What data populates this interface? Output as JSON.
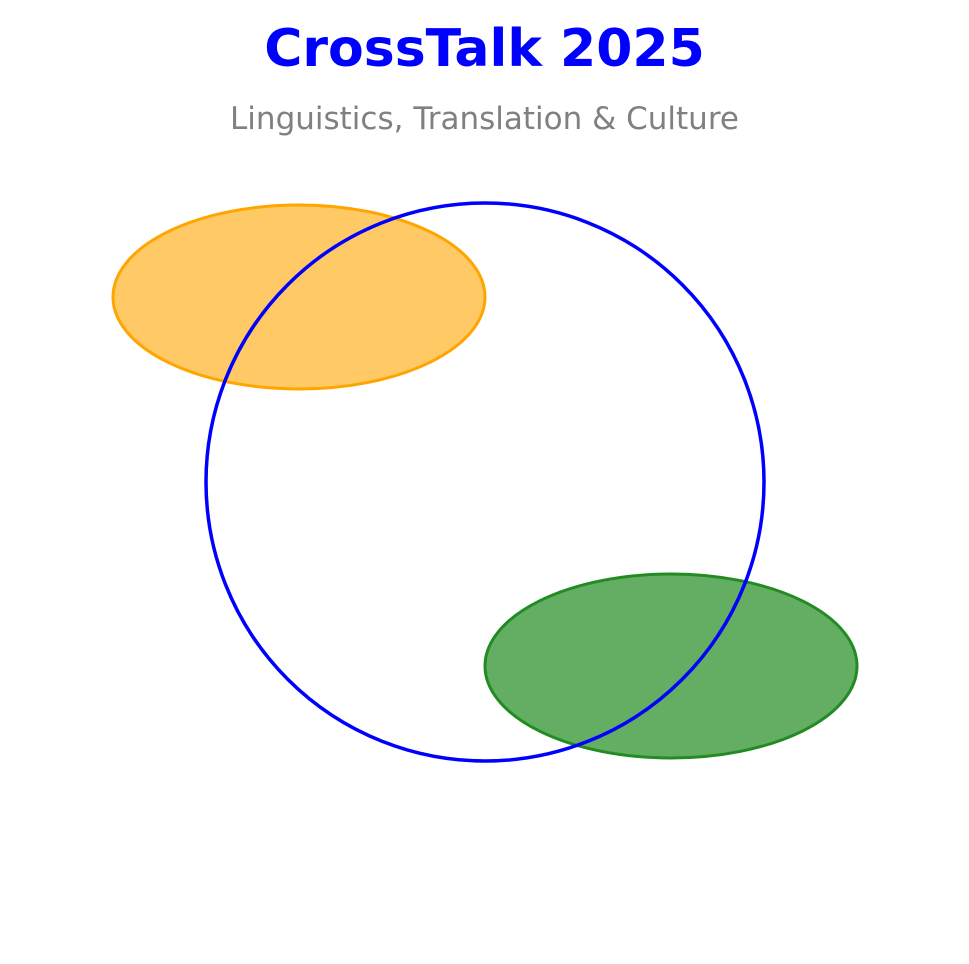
{
  "header": {
    "title": "CrossTalk 2025",
    "subtitle": "Linguistics, Translation & Culture"
  },
  "colors": {
    "title": "#0000ff",
    "subtitle": "#808080",
    "ring": "#0000ff",
    "orange_ellipse": "#ffa500",
    "green_ellipse": "#228b22"
  }
}
